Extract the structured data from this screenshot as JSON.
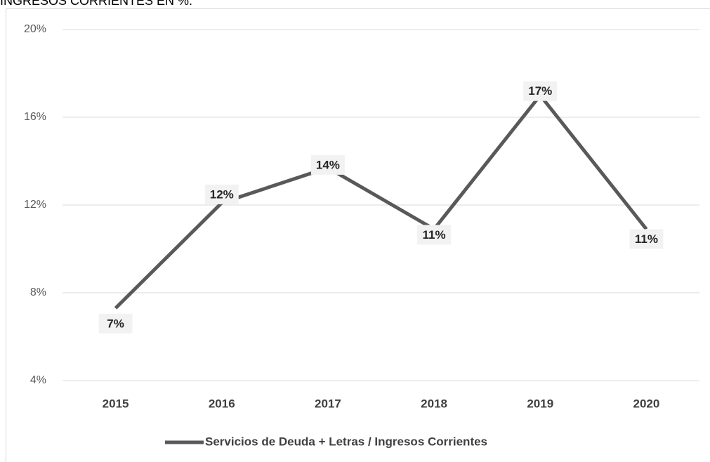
{
  "chart_data": {
    "type": "line",
    "title": "INGRESOS CORRIENTES EN %.",
    "categories": [
      "2015",
      "2016",
      "2017",
      "2018",
      "2019",
      "2020"
    ],
    "series": [
      {
        "name": "Servicios de Deuda + Letras / Ingresos Corrientes",
        "color": "#595959",
        "values": [
          7.3,
          12.1,
          13.7,
          10.9,
          17.0,
          10.9
        ],
        "value_labels": [
          "7%",
          "12%",
          "14%",
          "11%",
          "17%",
          "11%"
        ]
      }
    ],
    "ylim": [
      4,
      20
    ],
    "yticks": [
      {
        "value": 4,
        "label": "4%"
      },
      {
        "value": 8,
        "label": "8%"
      },
      {
        "value": 12,
        "label": "12%"
      },
      {
        "value": 16,
        "label": "16%"
      },
      {
        "value": 20,
        "label": "20%"
      }
    ],
    "grid": true,
    "legend": "bottom"
  }
}
